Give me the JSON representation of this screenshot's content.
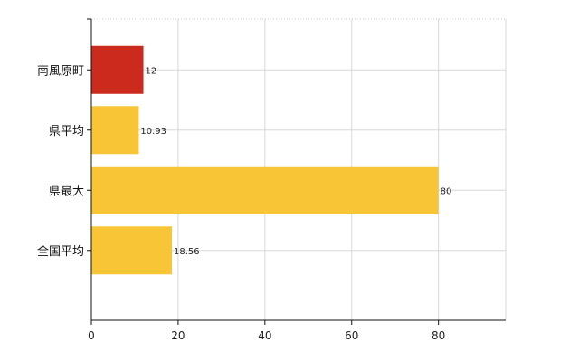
{
  "chart_data": {
    "type": "bar",
    "orientation": "horizontal",
    "categories": [
      "南風原町",
      "県平均",
      "県最大",
      "全国平均"
    ],
    "values": [
      12,
      10.93,
      80,
      18.56
    ],
    "value_labels": [
      "12",
      "10.93",
      "80",
      "18.56"
    ],
    "bar_colors": [
      "#cc2a1c",
      "#f7c535",
      "#f7c535",
      "#f7c535"
    ],
    "xlim": [
      0,
      95.5
    ],
    "xticks": [
      0,
      20,
      40,
      60,
      80
    ],
    "xtick_labels": [
      "0",
      "20",
      "40",
      "60",
      "80"
    ],
    "grid": true,
    "title": "",
    "xlabel": "",
    "ylabel": ""
  }
}
